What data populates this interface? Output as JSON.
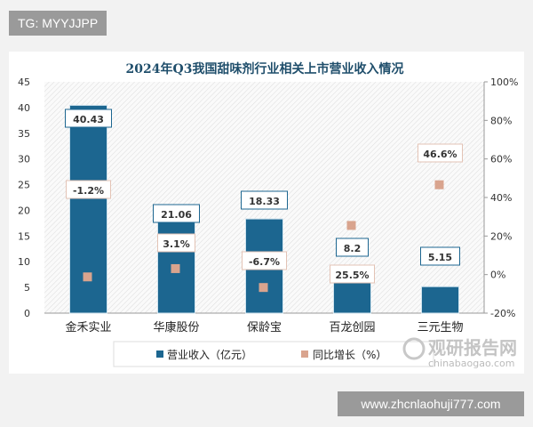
{
  "watermark_tag": "TG: MYYJJPP",
  "footer_url": "www.zhcnlaohuji777.com",
  "logo": {
    "text": "观研报告网",
    "sub": "chinabaogao.com"
  },
  "colors": {
    "bar": "#1c6690",
    "marker": "#d9a48e",
    "title": "#1f4e6b"
  },
  "chart_data": {
    "type": "bar+scatter",
    "title": "2024年Q3我国甜味剂行业相关上市营业收入情况",
    "categories": [
      "金禾实业",
      "华康股份",
      "保龄宝",
      "百龙创园",
      "三元生物"
    ],
    "series": [
      {
        "name": "营业收入（亿元）",
        "type": "bar",
        "axis": "left",
        "values": [
          40.43,
          21.06,
          18.33,
          8.2,
          5.15
        ],
        "labels": [
          "40.43",
          "21.06",
          "18.33",
          "8.2",
          "5.15"
        ]
      },
      {
        "name": "同比增长（%）",
        "type": "scatter",
        "axis": "right",
        "values": [
          -1.2,
          3.1,
          -6.7,
          25.5,
          46.6
        ],
        "labels": [
          "-1.2%",
          "3.1%",
          "-6.7%",
          "25.5%",
          "46.6%"
        ]
      }
    ],
    "left_axis": {
      "ylim": [
        0,
        45
      ],
      "ticks": [
        "0",
        "5",
        "10",
        "15",
        "20",
        "25",
        "30",
        "35",
        "40",
        "45"
      ]
    },
    "right_axis": {
      "ylim": [
        -20,
        100
      ],
      "ticks": [
        "-20%",
        "0%",
        "20%",
        "40%",
        "60%",
        "80%",
        "100%"
      ]
    },
    "legend": "bottom",
    "grid": false
  }
}
